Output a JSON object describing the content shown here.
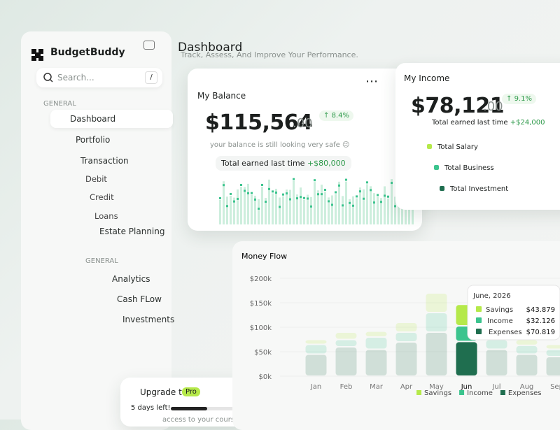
{
  "sidebar": {
    "brand": "BudgetBuddy",
    "search": "Search...",
    "search_key": "/",
    "section_1": "GENERAL",
    "nav": [
      "Dashboard",
      "Portfolio",
      "Transaction"
    ],
    "sub_nav": [
      "Debit",
      "Credit",
      "Loans"
    ],
    "nav_extra": "Estate Planning",
    "section_2": "GENERAL",
    "nav_2": [
      "Analytics",
      "Cash FLow",
      "Investments"
    ],
    "upgrade": {
      "title": "Upgrade to",
      "badge": "Pro",
      "days": "5 days left!",
      "text": "access to your courses."
    }
  },
  "header": {
    "title": "Dashboard",
    "subtitle": "Track, Assess, And Improve Your Performance."
  },
  "balance": {
    "title": "My Balance",
    "amount": "$115,564",
    "cents": ".00",
    "change": "8.4%",
    "note": "your balance is still looking very safe 😉",
    "earned_label": "Total earned last time",
    "earned_value": "+$80,000"
  },
  "income": {
    "title": "My Income",
    "amount": "$78,121",
    "cents": ".00",
    "change": "9.1%",
    "earned_label": "Total earned last time",
    "earned_value": "+$24,000",
    "legend": [
      "Total Salary",
      "Total Business",
      "Total Investment"
    ]
  },
  "money_flow": {
    "type": "bar",
    "stacked": true,
    "title": "Money Flow",
    "tooltip_title": "June, 2026",
    "categories": [
      "Jan",
      "Feb",
      "Mar",
      "Apr",
      "May",
      "Jun",
      "Jul",
      "Aug",
      "Sep"
    ],
    "ylim": [
      0,
      200
    ],
    "yticks": [
      {
        "value": 200,
        "label": "$200k"
      },
      {
        "value": 150,
        "label": "$150k"
      },
      {
        "value": 100,
        "label": "$100k"
      },
      {
        "value": 50,
        "label": "$50k"
      },
      {
        "value": 0,
        "label": "$0k"
      }
    ],
    "series": [
      {
        "name": "Expenses",
        "color": "#1f6e4f",
        "values": [
          45,
          60,
          55,
          70,
          90,
          70.819,
          55,
          45,
          40
        ],
        "value_labels": [
          null,
          null,
          null,
          null,
          null,
          "$70.819",
          null,
          null,
          null
        ]
      },
      {
        "name": "Income",
        "color": "#3cc48e",
        "values": [
          20,
          15,
          25,
          20,
          40,
          32.126,
          20,
          18,
          15
        ],
        "value_labels": [
          null,
          null,
          null,
          null,
          null,
          "$32.126",
          null,
          null,
          null
        ]
      },
      {
        "name": "Savings",
        "color": "#b5e94a",
        "values": [
          10,
          15,
          12,
          20,
          40,
          43.879,
          15,
          12,
          10
        ],
        "value_labels": [
          null,
          null,
          null,
          null,
          null,
          "$43.879",
          null,
          null,
          null
        ]
      }
    ]
  }
}
